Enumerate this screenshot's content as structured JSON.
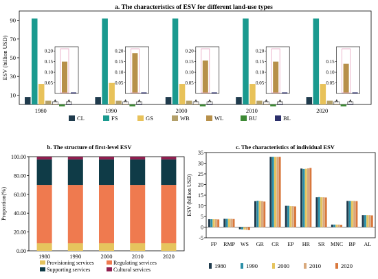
{
  "figure": {
    "panel_a_title": "a. The characteristics of ESV for different land-use types",
    "panel_b_title": "b. The structure of  first-level ESV",
    "panel_c_title": "c. The characteristics of individual ESV"
  },
  "colors": {
    "CL": "#1f3b4d",
    "FS": "#1a9a8f",
    "GS": "#e8c25a",
    "WB": "#b3a06a",
    "WL": "#b7904a",
    "BU": "#3d8a35",
    "BL": "#2b2f6b",
    "Provisioning": "#e6c45d",
    "Regulating": "#ef7a4f",
    "Supporting": "#0f3b47",
    "Cultural": "#8f1f4f",
    "y1980": "#1f3b4d",
    "y1990": "#2a8fa7",
    "y2000": "#e5c45d",
    "y2010": "#d9a97c",
    "y2020": "#d9783d"
  },
  "chart_data": [
    {
      "type": "bar",
      "title": "a. The characteristics of ESV for different land-use types",
      "ylabel": "ESV (billion USD)",
      "ylim": [
        0,
        100
      ],
      "yticks": [
        "10",
        "30",
        "50",
        "70",
        "90"
      ],
      "categories": [
        "1980",
        "1990",
        "2000",
        "2010",
        "2020"
      ],
      "series": [
        {
          "name": "CL",
          "values": [
            8,
            8,
            8,
            8,
            8
          ]
        },
        {
          "name": "FS",
          "values": [
            92,
            92,
            92,
            92,
            92
          ]
        },
        {
          "name": "GS",
          "values": [
            22,
            23,
            22,
            22,
            22
          ]
        },
        {
          "name": "WB",
          "values": [
            4,
            4,
            4,
            4,
            4
          ]
        },
        {
          "name": "WL",
          "values": [
            0.5,
            0.5,
            0.5,
            0.5,
            0.5
          ]
        },
        {
          "name": "BU",
          "values": [
            -2,
            -2,
            -2,
            -2,
            -2
          ]
        },
        {
          "name": "BL",
          "values": [
            0.7,
            0.7,
            0.7,
            0.7,
            0.7
          ]
        }
      ],
      "inset": {
        "yticks": [
          "0.05",
          "0.10",
          "0.15",
          "0.20"
        ],
        "ylim": [
          0,
          0.22
        ],
        "tick_sets": [
          [
            "0.05",
            "0.10",
            "0.15",
            "0.20"
          ],
          [
            "0.05",
            "0.10",
            "0.15",
            "0.20"
          ],
          [
            "0.05",
            "0.10",
            "0.15",
            "0.20"
          ],
          [
            "0.05",
            "0.10",
            "0.15",
            "0.20"
          ],
          [
            "0.05",
            "0.10",
            "0.15"
          ]
        ],
        "series": [
          {
            "name": "WL",
            "values": [
              0.15,
              0.19,
              0.155,
              0.15,
              0.14
            ]
          },
          {
            "name": "BL",
            "values": [
              0.005,
              0.005,
              0.005,
              0.005,
              0.005
            ]
          }
        ]
      },
      "legend": [
        "CL",
        "FS",
        "GS",
        "WB",
        "WL",
        "BU",
        "BL"
      ],
      "legend_position": "bottom"
    },
    {
      "type": "bar",
      "title": "b. The structure of  first-level ESV",
      "ylabel": "Proportion(%)",
      "ylim": [
        0,
        100
      ],
      "yticks": [
        "0.00",
        "20.00",
        "40.00",
        "60.00",
        "80.00",
        "100.00"
      ],
      "categories": [
        "1980",
        "1990",
        "2000",
        "2010",
        "2020"
      ],
      "stacked": true,
      "series": [
        {
          "name": "Provisioning services",
          "values": [
            8,
            8,
            8,
            8,
            8
          ]
        },
        {
          "name": "Regulating services",
          "values": [
            62,
            62,
            62,
            62,
            62
          ]
        },
        {
          "name": "Supporting services",
          "values": [
            27,
            27,
            27,
            27,
            27
          ]
        },
        {
          "name": "Cultural services",
          "values": [
            3,
            3,
            3,
            3,
            3
          ]
        }
      ],
      "legend": [
        "Provisioning services",
        "Regulating services",
        "Supporting services",
        "Cultural services"
      ],
      "legend_position": "bottom"
    },
    {
      "type": "bar",
      "title": "c. The characteristics of individual ESV",
      "ylabel": "ESV (billion USD)",
      "ylim": [
        -5,
        35
      ],
      "yticks": [
        "-5",
        "0",
        "5",
        "10",
        "15",
        "20",
        "25",
        "30",
        "35"
      ],
      "categories": [
        "FP",
        "RMP",
        "WS",
        "GR",
        "CR",
        "EP",
        "HR",
        "SR",
        "MNC",
        "BP",
        "AL"
      ],
      "series": [
        {
          "name": "1980",
          "values": [
            3.7,
            3.9,
            -1.0,
            12.2,
            33.0,
            10.0,
            27.5,
            14.0,
            1.2,
            12.3,
            5.6
          ]
        },
        {
          "name": "1990",
          "values": [
            3.7,
            3.9,
            -1.1,
            12.4,
            33.0,
            10.0,
            27.3,
            14.1,
            1.2,
            12.3,
            5.6
          ]
        },
        {
          "name": "2000",
          "values": [
            3.7,
            3.9,
            -1.2,
            12.3,
            33.0,
            9.8,
            27.4,
            14.0,
            1.2,
            12.3,
            5.6
          ]
        },
        {
          "name": "2010",
          "values": [
            3.7,
            3.9,
            -1.3,
            12.2,
            33.0,
            9.8,
            27.6,
            14.0,
            1.2,
            12.3,
            5.6
          ]
        },
        {
          "name": "2020",
          "values": [
            3.6,
            3.8,
            -1.4,
            12.0,
            33.0,
            9.7,
            27.8,
            13.9,
            1.1,
            12.2,
            5.5
          ]
        }
      ],
      "legend": [
        "1980",
        "1990",
        "2000",
        "2010",
        "2020"
      ],
      "legend_position": "bottom"
    }
  ]
}
